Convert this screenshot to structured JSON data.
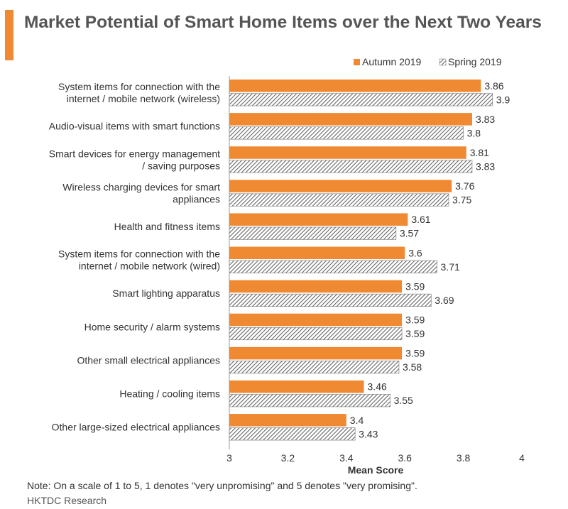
{
  "title": "Market Potential of Smart Home Items over the Next Two Years",
  "note": "Note: On a scale of 1 to 5, 1 denotes \"very unpromising\" and 5 denotes \"very promising\".",
  "source": "HKTDC Research",
  "colors": {
    "accent": "#F08A32",
    "autumn": "#F08A32",
    "spring_stripe": "#666666"
  },
  "chart_data": {
    "type": "bar",
    "orientation": "horizontal",
    "categories": [
      [
        "System items for connection with the",
        "internet / mobile network (wireless)"
      ],
      [
        "Audio-visual items with smart functions"
      ],
      [
        "Smart devices for energy management",
        "/ saving purposes"
      ],
      [
        "Wireless charging devices for smart",
        "appliances"
      ],
      [
        "Health and fitness items"
      ],
      [
        "System items for connection with the",
        "internet / mobile network (wired)"
      ],
      [
        "Smart lighting apparatus"
      ],
      [
        "Home security / alarm systems"
      ],
      [
        "Other small electrical appliances"
      ],
      [
        "Heating / cooling items"
      ],
      [
        "Other large-sized electrical appliances"
      ]
    ],
    "series": [
      {
        "name": "Autumn 2019",
        "pattern": "solid",
        "values": [
          3.86,
          3.83,
          3.81,
          3.76,
          3.61,
          3.6,
          3.59,
          3.59,
          3.59,
          3.46,
          3.4
        ],
        "labels": [
          "3.86",
          "3.83",
          "3.81",
          "3.76",
          "3.61",
          "3.6",
          "3.59",
          "3.59",
          "3.59",
          "3.46",
          "3.4"
        ]
      },
      {
        "name": "Spring 2019",
        "pattern": "hatched",
        "values": [
          3.9,
          3.8,
          3.83,
          3.75,
          3.57,
          3.71,
          3.69,
          3.59,
          3.58,
          3.55,
          3.43
        ],
        "labels": [
          "3.9",
          "3.8",
          "3.83",
          "3.75",
          "3.57",
          "3.71",
          "3.69",
          "3.59",
          "3.58",
          "3.55",
          "3.43"
        ]
      }
    ],
    "xlim": [
      3,
      4
    ],
    "xticks": [
      "3",
      "3.2",
      "3.4",
      "3.6",
      "3.8",
      "4"
    ],
    "xlabel": "Mean Score",
    "ylabel": "",
    "legend_position": "top-right",
    "grid": false
  }
}
